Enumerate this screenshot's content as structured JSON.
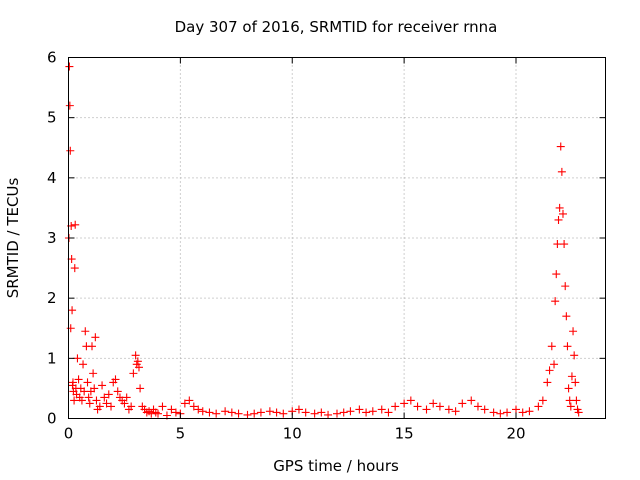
{
  "chart_data": {
    "type": "scatter",
    "title": "Day 307 of 2016, SRMTID for receiver rnna",
    "xlabel": "GPS time / hours",
    "ylabel": "SRMTID / TECUs",
    "xlim": [
      0,
      24
    ],
    "ylim": [
      0,
      6
    ],
    "xticks": [
      0,
      5,
      10,
      15,
      20
    ],
    "yticks": [
      0,
      1,
      2,
      3,
      4,
      5,
      6
    ],
    "grid": true,
    "marker": "+",
    "color": "#ff0000",
    "series": [
      {
        "name": "SRMTID",
        "x": [
          0.02,
          0.04,
          0.06,
          0.08,
          0.1,
          0.12,
          0.14,
          0.16,
          0.18,
          0.2,
          0.22,
          0.25,
          0.28,
          0.3,
          0.33,
          0.36,
          0.4,
          0.45,
          0.5,
          0.55,
          0.6,
          0.65,
          0.7,
          0.75,
          0.8,
          0.85,
          0.9,
          0.95,
          1.0,
          1.05,
          1.1,
          1.15,
          1.2,
          1.25,
          1.3,
          1.4,
          1.5,
          1.6,
          1.7,
          1.8,
          1.9,
          2.0,
          2.1,
          2.2,
          2.3,
          2.4,
          2.5,
          2.6,
          2.7,
          2.8,
          2.9,
          3.0,
          3.05,
          3.1,
          3.15,
          3.2,
          3.3,
          3.4,
          3.5,
          3.6,
          3.7,
          3.8,
          3.9,
          4.0,
          4.2,
          4.4,
          4.6,
          4.8,
          5.0,
          5.2,
          5.4,
          5.6,
          5.8,
          6.0,
          6.3,
          6.6,
          7.0,
          7.3,
          7.6,
          8.0,
          8.3,
          8.6,
          9.0,
          9.3,
          9.6,
          10.0,
          10.3,
          10.6,
          11.0,
          11.3,
          11.6,
          12.0,
          12.3,
          12.6,
          13.0,
          13.3,
          13.6,
          14.0,
          14.3,
          14.6,
          15.0,
          15.3,
          15.6,
          16.0,
          16.3,
          16.6,
          17.0,
          17.3,
          17.6,
          18.0,
          18.3,
          18.6,
          19.0,
          19.3,
          19.6,
          20.0,
          20.3,
          20.6,
          21.0,
          21.2,
          21.4,
          21.5,
          21.6,
          21.7,
          21.75,
          21.8,
          21.85,
          21.9,
          21.95,
          22.0,
          22.05,
          22.1,
          22.15,
          22.2,
          22.25,
          22.3,
          22.35,
          22.4,
          22.45,
          22.5,
          22.55,
          22.6,
          22.65,
          22.7,
          22.75,
          22.8
        ],
        "y": [
          3.0,
          5.85,
          5.2,
          4.45,
          1.5,
          3.2,
          2.65,
          1.8,
          0.55,
          0.6,
          0.45,
          0.3,
          2.5,
          3.22,
          0.5,
          0.4,
          1.0,
          0.65,
          0.35,
          0.5,
          0.3,
          0.9,
          0.45,
          1.45,
          1.2,
          0.6,
          0.35,
          0.25,
          0.45,
          1.2,
          0.75,
          0.5,
          1.35,
          0.3,
          0.15,
          0.2,
          0.55,
          0.35,
          0.25,
          0.4,
          0.2,
          0.6,
          0.65,
          0.45,
          0.35,
          0.3,
          0.25,
          0.35,
          0.15,
          0.2,
          0.75,
          1.05,
          0.9,
          0.95,
          0.85,
          0.5,
          0.2,
          0.15,
          0.1,
          0.12,
          0.08,
          0.15,
          0.1,
          0.08,
          0.2,
          0.05,
          0.15,
          0.1,
          0.08,
          0.25,
          0.3,
          0.2,
          0.15,
          0.12,
          0.1,
          0.08,
          0.12,
          0.1,
          0.08,
          0.06,
          0.08,
          0.1,
          0.12,
          0.1,
          0.08,
          0.12,
          0.15,
          0.1,
          0.08,
          0.1,
          0.06,
          0.08,
          0.1,
          0.12,
          0.15,
          0.1,
          0.12,
          0.15,
          0.1,
          0.2,
          0.25,
          0.3,
          0.2,
          0.15,
          0.25,
          0.2,
          0.15,
          0.12,
          0.25,
          0.3,
          0.2,
          0.15,
          0.1,
          0.08,
          0.1,
          0.15,
          0.1,
          0.12,
          0.2,
          0.3,
          0.6,
          0.8,
          1.2,
          0.9,
          1.95,
          2.4,
          2.9,
          3.3,
          3.5,
          4.52,
          4.1,
          3.4,
          2.9,
          2.2,
          1.7,
          1.2,
          0.5,
          0.3,
          0.2,
          0.7,
          1.45,
          1.05,
          0.6,
          0.3,
          0.15,
          0.1
        ]
      }
    ]
  }
}
